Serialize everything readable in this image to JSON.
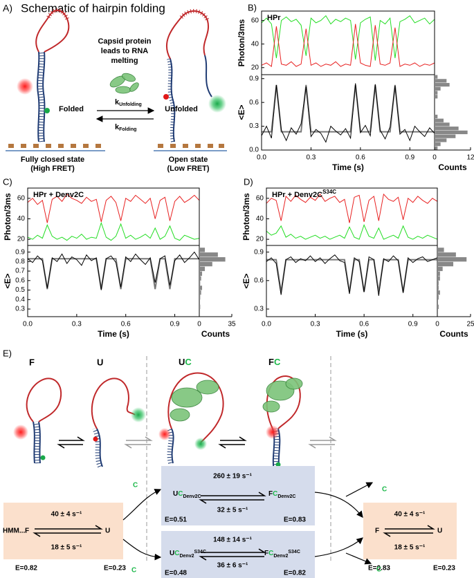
{
  "panel_a": {
    "label": "A)",
    "title": "Schematic of hairpin folding",
    "capsid": [
      "Capsid protein",
      "leads to RNA",
      "melting"
    ],
    "folded": "Folded",
    "unfolded": "Unfolded",
    "k_unfold": {
      "k": "k",
      "sub": "Unfolding"
    },
    "k_fold": {
      "k": "k",
      "sub": "Folding"
    },
    "closed": [
      "Fully closed state",
      "(High FRET)"
    ],
    "open": [
      "Open state",
      "(Low FRET)"
    ]
  },
  "panel_labels": [
    "B)",
    "C)",
    "D)"
  ],
  "chart_data": [
    {
      "type": "line",
      "title": "HPr",
      "ylabel": "Photon/3ms",
      "x": [
        0,
        0.03,
        0.06,
        0.09,
        0.12,
        0.15,
        0.18,
        0.21,
        0.24,
        0.27,
        0.3,
        0.33,
        0.36,
        0.39,
        0.42,
        0.45,
        0.48,
        0.51,
        0.54,
        0.57,
        0.6,
        0.63,
        0.66,
        0.69,
        0.72,
        0.75,
        0.78,
        0.81,
        0.84,
        0.87,
        0.9,
        0.93,
        0.96,
        0.99,
        1.02,
        1.05
      ],
      "xlim": [
        0,
        1.05
      ],
      "ylim": [
        14,
        68
      ],
      "yticks": [
        20,
        40,
        60
      ],
      "series": [
        {
          "color": "#22dd22",
          "values": [
            58,
            62,
            57,
            28,
            60,
            63,
            59,
            61,
            56,
            30,
            62,
            58,
            60,
            64,
            57,
            61,
            59,
            62,
            60,
            27,
            58,
            61,
            63,
            26,
            60,
            57,
            62,
            28,
            59,
            61,
            64,
            58,
            60,
            62,
            57,
            61
          ]
        },
        {
          "color": "#e82020",
          "values": [
            22,
            24,
            21,
            55,
            23,
            22,
            25,
            21,
            23,
            53,
            22,
            24,
            21,
            23,
            22,
            25,
            21,
            23,
            22,
            57,
            24,
            22,
            21,
            56,
            23,
            22,
            24,
            54,
            21,
            23,
            22,
            24,
            21,
            23,
            22,
            24
          ]
        }
      ]
    },
    {
      "type": "line",
      "ylabel": "<E>",
      "xlabel": "Time (s)",
      "x": [
        0,
        0.03,
        0.06,
        0.09,
        0.12,
        0.15,
        0.18,
        0.21,
        0.24,
        0.27,
        0.3,
        0.33,
        0.36,
        0.39,
        0.42,
        0.45,
        0.48,
        0.51,
        0.54,
        0.57,
        0.6,
        0.63,
        0.66,
        0.69,
        0.72,
        0.75,
        0.78,
        0.81,
        0.84,
        0.87,
        0.9,
        0.93,
        0.96,
        0.99,
        1.02,
        1.05
      ],
      "xlim": [
        0,
        1.05
      ],
      "xticks": [
        {
          "value": 0,
          "label": "0.0"
        },
        0.3,
        0.6,
        0.9
      ],
      "ylim": [
        0,
        0.95
      ],
      "yticks": [
        {
          "value": 0,
          "label": "0.0"
        },
        0.3,
        0.6,
        0.9
      ],
      "series": [
        {
          "color": "#777777",
          "values": [
            0.23,
            0.23,
            0.23,
            0.82,
            0.23,
            0.23,
            0.23,
            0.23,
            0.23,
            0.82,
            0.23,
            0.23,
            0.23,
            0.23,
            0.23,
            0.23,
            0.23,
            0.23,
            0.23,
            0.82,
            0.23,
            0.23,
            0.23,
            0.82,
            0.23,
            0.23,
            0.23,
            0.82,
            0.23,
            0.23,
            0.23,
            0.23,
            0.23,
            0.23,
            0.23,
            0.23
          ]
        },
        {
          "color": "#000000",
          "values": [
            0.18,
            0.3,
            0.15,
            0.82,
            0.25,
            0.12,
            0.28,
            0.2,
            0.33,
            0.8,
            0.17,
            0.26,
            0.21,
            0.1,
            0.3,
            0.24,
            0.19,
            0.27,
            0.15,
            0.84,
            0.22,
            0.31,
            0.18,
            0.83,
            0.25,
            0.14,
            0.29,
            0.81,
            0.2,
            0.26,
            0.12,
            0.3,
            0.23,
            0.17,
            0.28,
            0.21
          ]
        }
      ],
      "histogram": {
        "color": "#888888",
        "bins": [
          0,
          0.05,
          0.1,
          0.15,
          0.2,
          0.25,
          0.3,
          0.35,
          0.4,
          0.45,
          0.5,
          0.55,
          0.6,
          0.65,
          0.7,
          0.75,
          0.8,
          0.85,
          0.9,
          0.95
        ],
        "counts": [
          1,
          2,
          4,
          7,
          11,
          8,
          5,
          3,
          1,
          0,
          0,
          0,
          0,
          1,
          1,
          2,
          5,
          4,
          1
        ],
        "xlim": [
          0,
          12
        ],
        "xticks": [
          0,
          12
        ],
        "xlabel": "Counts"
      }
    },
    {
      "type": "line",
      "title": "HPr + Denv2C",
      "ylabel": "Photon/3ms",
      "x": [
        0,
        0.03,
        0.06,
        0.09,
        0.12,
        0.15,
        0.18,
        0.21,
        0.24,
        0.27,
        0.3,
        0.33,
        0.36,
        0.39,
        0.42,
        0.45,
        0.48,
        0.51,
        0.54,
        0.57,
        0.6,
        0.63,
        0.66,
        0.69,
        0.72,
        0.75,
        0.78,
        0.81,
        0.84,
        0.87,
        0.9,
        0.93,
        0.96,
        0.99,
        1.02,
        1.05
      ],
      "xlim": [
        0,
        1.05
      ],
      "ylim": [
        14,
        70
      ],
      "yticks": [
        20,
        40,
        60
      ],
      "series": [
        {
          "color": "#e82020",
          "values": [
            56,
            60,
            54,
            58,
            36,
            59,
            62,
            57,
            64,
            60,
            58,
            55,
            61,
            57,
            59,
            37,
            58,
            62,
            56,
            38,
            60,
            57,
            63,
            59,
            55,
            60,
            40,
            58,
            61,
            38,
            57,
            62,
            56,
            59,
            63,
            58
          ]
        },
        {
          "color": "#22dd22",
          "values": [
            22,
            20,
            24,
            21,
            34,
            23,
            20,
            22,
            19,
            23,
            21,
            25,
            20,
            22,
            21,
            36,
            22,
            19,
            23,
            35,
            21,
            24,
            20,
            22,
            25,
            21,
            31,
            20,
            23,
            33,
            21,
            19,
            24,
            22,
            20,
            21
          ]
        }
      ]
    },
    {
      "type": "line",
      "ylabel": "<E>",
      "xlabel": "Time (s)",
      "x": [
        0,
        0.03,
        0.06,
        0.09,
        0.12,
        0.15,
        0.18,
        0.21,
        0.24,
        0.27,
        0.3,
        0.33,
        0.36,
        0.39,
        0.42,
        0.45,
        0.48,
        0.51,
        0.54,
        0.57,
        0.6,
        0.63,
        0.66,
        0.69,
        0.72,
        0.75,
        0.78,
        0.81,
        0.84,
        0.87,
        0.9,
        0.93,
        0.96,
        0.99,
        1.02,
        1.05
      ],
      "xlim": [
        0,
        1.05
      ],
      "xticks": [
        {
          "value": 0,
          "label": "0.0"
        },
        0.3,
        0.6,
        0.9
      ],
      "ylim": [
        0.22,
        0.97
      ],
      "yticks": [
        0.3,
        0.4,
        0.5,
        0.6,
        0.7,
        0.8,
        0.9
      ],
      "series": [
        {
          "color": "#777777",
          "values": [
            0.83,
            0.83,
            0.83,
            0.83,
            0.51,
            0.83,
            0.83,
            0.83,
            0.83,
            0.83,
            0.83,
            0.83,
            0.83,
            0.83,
            0.83,
            0.51,
            0.83,
            0.83,
            0.83,
            0.51,
            0.83,
            0.83,
            0.83,
            0.83,
            0.83,
            0.83,
            0.51,
            0.83,
            0.83,
            0.51,
            0.83,
            0.83,
            0.83,
            0.83,
            0.83,
            0.83
          ]
        },
        {
          "color": "#000000",
          "values": [
            0.83,
            0.79,
            0.86,
            0.81,
            0.52,
            0.84,
            0.8,
            0.88,
            0.78,
            0.85,
            0.82,
            0.76,
            0.87,
            0.81,
            0.84,
            0.5,
            0.83,
            0.86,
            0.79,
            0.53,
            0.85,
            0.8,
            0.88,
            0.82,
            0.77,
            0.84,
            0.58,
            0.83,
            0.86,
            0.55,
            0.81,
            0.87,
            0.79,
            0.84,
            0.9,
            0.82
          ]
        }
      ],
      "histogram": {
        "color": "#888888",
        "bins": [
          0.25,
          0.3,
          0.35,
          0.4,
          0.45,
          0.5,
          0.55,
          0.6,
          0.65,
          0.7,
          0.75,
          0.8,
          0.85,
          0.9,
          0.95
        ],
        "counts": [
          0,
          1,
          0,
          1,
          2,
          3,
          1,
          2,
          3,
          6,
          14,
          28,
          20,
          6
        ],
        "xlim": [
          0,
          35
        ],
        "xticks": [
          0,
          35
        ],
        "xlabel": "Counts"
      }
    },
    {
      "type": "line",
      "title": "HPr + Denv2C",
      "title_sup": "S34C",
      "ylabel": "Photon/3ms",
      "x": [
        0,
        0.03,
        0.06,
        0.09,
        0.12,
        0.15,
        0.18,
        0.21,
        0.24,
        0.27,
        0.3,
        0.33,
        0.36,
        0.39,
        0.42,
        0.45,
        0.48,
        0.51,
        0.54,
        0.57,
        0.6,
        0.63,
        0.66,
        0.69,
        0.72,
        0.75,
        0.78,
        0.81,
        0.84,
        0.87,
        0.9,
        0.93,
        0.96,
        0.99,
        1.02,
        1.05
      ],
      "xlim": [
        0,
        1.05
      ],
      "ylim": [
        14,
        70
      ],
      "yticks": [
        20,
        40,
        60
      ],
      "series": [
        {
          "color": "#e82020",
          "values": [
            55,
            60,
            58,
            38,
            62,
            57,
            63,
            59,
            56,
            61,
            58,
            64,
            57,
            60,
            62,
            56,
            59,
            36,
            61,
            63,
            37,
            58,
            62,
            38,
            64,
            59,
            57,
            61,
            39,
            60,
            56,
            62,
            58,
            55,
            60,
            57
          ]
        },
        {
          "color": "#22dd22",
          "values": [
            28,
            24,
            26,
            33,
            22,
            25,
            21,
            23,
            20,
            22,
            24,
            21,
            23,
            20,
            22,
            24,
            21,
            32,
            22,
            20,
            34,
            23,
            21,
            31,
            20,
            22,
            24,
            21,
            33,
            22,
            20,
            23,
            21,
            24,
            22,
            20
          ]
        }
      ]
    },
    {
      "type": "line",
      "ylabel": "<E>",
      "xlabel": "Time (s)",
      "x": [
        0,
        0.03,
        0.06,
        0.09,
        0.12,
        0.15,
        0.18,
        0.21,
        0.24,
        0.27,
        0.3,
        0.33,
        0.36,
        0.39,
        0.42,
        0.45,
        0.48,
        0.51,
        0.54,
        0.57,
        0.6,
        0.63,
        0.66,
        0.69,
        0.72,
        0.75,
        0.78,
        0.81,
        0.84,
        0.87,
        0.9,
        0.93,
        0.96,
        0.99,
        1.02,
        1.05
      ],
      "xlim": [
        0,
        1.05
      ],
      "xticks": [
        {
          "value": 0,
          "label": "0.0"
        },
        0.3,
        0.6,
        0.9
      ],
      "ylim": [
        0.22,
        0.97
      ],
      "yticks": [
        0.3,
        0.6,
        0.9
      ],
      "series": [
        {
          "color": "#777777",
          "values": [
            0.82,
            0.82,
            0.82,
            0.48,
            0.82,
            0.82,
            0.82,
            0.82,
            0.82,
            0.82,
            0.82,
            0.82,
            0.82,
            0.82,
            0.82,
            0.82,
            0.82,
            0.48,
            0.82,
            0.82,
            0.48,
            0.82,
            0.82,
            0.48,
            0.82,
            0.82,
            0.82,
            0.82,
            0.48,
            0.82,
            0.82,
            0.82,
            0.82,
            0.82,
            0.82,
            0.82
          ]
        },
        {
          "color": "#000000",
          "values": [
            0.8,
            0.84,
            0.78,
            0.45,
            0.82,
            0.85,
            0.79,
            0.83,
            0.81,
            0.86,
            0.8,
            0.84,
            0.78,
            0.83,
            0.87,
            0.81,
            0.79,
            0.46,
            0.84,
            0.8,
            0.48,
            0.85,
            0.82,
            0.44,
            0.83,
            0.8,
            0.86,
            0.81,
            0.47,
            0.84,
            0.79,
            0.83,
            0.85,
            0.8,
            0.82,
            0.84
          ]
        }
      ],
      "histogram": {
        "color": "#888888",
        "bins": [
          0.25,
          0.3,
          0.35,
          0.4,
          0.45,
          0.5,
          0.55,
          0.6,
          0.65,
          0.7,
          0.75,
          0.8,
          0.85,
          0.9,
          0.95
        ],
        "counts": [
          0,
          1,
          0,
          1,
          2,
          1,
          1,
          2,
          2,
          4,
          12,
          22,
          14,
          5
        ],
        "xlim": [
          0,
          25
        ],
        "xticks": [
          0,
          25
        ],
        "xlabel": "Counts"
      }
    }
  ],
  "panel_e": {
    "label": "E)",
    "states": {
      "f": "F",
      "u": "U",
      "uc": {
        "main": "U",
        "c": "C"
      },
      "fc": {
        "main": "F",
        "c": "C"
      }
    },
    "hmm": "HMM....",
    "left": {
      "rate_top": "40 ± 4 s⁻¹",
      "rate_bottom": "18 ± 5 s⁻¹",
      "left": "F",
      "right": "U",
      "e_left": "E=0.82",
      "e_right": "E=0.23"
    },
    "mid_top": {
      "rate_top": "260 ± 19 s⁻¹",
      "rate_bottom": "32 ± 5 s⁻¹",
      "left": {
        "main": "U",
        "c": "C",
        "sub": "Denv2C"
      },
      "right": {
        "main": "F",
        "c": "C",
        "sub": "Denv2C"
      },
      "e_left": "E=0.51",
      "e_right": "E=0.83"
    },
    "mid_bottom": {
      "rate_top": "148 ± 14 s⁻¹",
      "rate_bottom": "36 ± 6 s⁻¹",
      "left": {
        "main": "U",
        "c": "C",
        "sub": "Denv2",
        "sup": "S34C"
      },
      "right": {
        "main": "F",
        "c": "C",
        "sub": "Denv2",
        "sup": "S34C"
      },
      "e_left": "E=0.48",
      "e_right": "E=0.82"
    },
    "right": {
      "rate_top": "40 ± 4 s⁻¹",
      "rate_bottom": "18 ± 5 s⁻¹",
      "left": "F",
      "right": "U",
      "e_left": "E=0.83",
      "e_right": "E=0.23"
    },
    "c_labels": [
      "C",
      "C",
      "C",
      "C"
    ]
  }
}
